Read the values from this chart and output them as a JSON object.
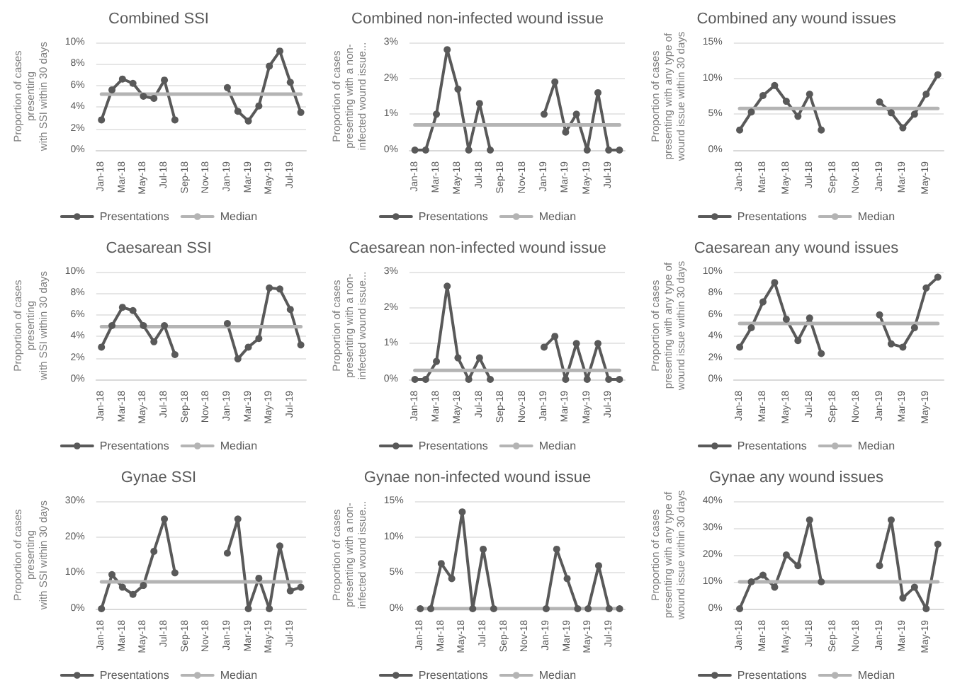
{
  "chart_data": [
    {
      "type": "line",
      "title": "Combined SSI",
      "ylabel": "Proportion of cases\npresenting\nwith SSI within 30 days",
      "categories": [
        "Jan-18",
        null,
        "Mar-18",
        null,
        "May-18",
        null,
        "Jul-18",
        null,
        "Sep-18",
        null,
        "Nov-18",
        null,
        "Jan-19",
        null,
        "Mar-19",
        null,
        "May-19",
        null,
        "Jul-19",
        null
      ],
      "series": [
        {
          "name": "Presentations",
          "color": "#595959",
          "marker": "circle",
          "values": [
            2.8,
            5.6,
            6.6,
            6.2,
            5.0,
            4.8,
            6.5,
            2.8,
            null,
            null,
            null,
            null,
            5.8,
            3.6,
            2.7,
            4.1,
            7.8,
            9.2,
            6.3,
            3.5
          ]
        },
        {
          "name": "Median",
          "color": "#b4b4b4",
          "marker": "none",
          "values": [
            5.2,
            5.2,
            5.2,
            5.2,
            5.2,
            5.2,
            5.2,
            5.2,
            5.2,
            5.2,
            5.2,
            5.2,
            5.2,
            5.2,
            5.2,
            5.2,
            5.2,
            5.2,
            5.2,
            5.2
          ]
        }
      ],
      "ylim": [
        0,
        10
      ],
      "yticks": [
        {
          "value": 0,
          "label": "0%"
        },
        {
          "value": 2,
          "label": "2%"
        },
        {
          "value": 4,
          "label": "4%"
        },
        {
          "value": 6,
          "label": "6%"
        },
        {
          "value": 8,
          "label": "8%"
        },
        {
          "value": 10,
          "label": "10%"
        }
      ],
      "grid": "y",
      "legend": "bottom"
    },
    {
      "type": "line",
      "title": "Combined non-infected wound issue",
      "ylabel": "Proportion of cases\npresenting with a non-\ninfected wound issue...",
      "categories": [
        "Jan-18",
        null,
        "Mar-18",
        null,
        "May-18",
        null,
        "Jul-18",
        null,
        "Sep-18",
        null,
        "Nov-18",
        null,
        "Jan-19",
        null,
        "Mar-19",
        null,
        "May-19",
        null,
        "Jul-19",
        null
      ],
      "series": [
        {
          "name": "Presentations",
          "color": "#595959",
          "marker": "circle",
          "values": [
            0,
            0,
            1.0,
            2.8,
            1.7,
            0,
            1.3,
            0,
            null,
            null,
            null,
            null,
            1.0,
            1.9,
            0.5,
            1.0,
            0,
            1.6,
            0,
            0
          ]
        },
        {
          "name": "Median",
          "color": "#b4b4b4",
          "marker": "none",
          "values": [
            0.7,
            0.7,
            0.7,
            0.7,
            0.7,
            0.7,
            0.7,
            0.7,
            0.7,
            0.7,
            0.7,
            0.7,
            0.7,
            0.7,
            0.7,
            0.7,
            0.7,
            0.7,
            0.7,
            0.7
          ]
        }
      ],
      "ylim": [
        0,
        3
      ],
      "yticks": [
        {
          "value": 0,
          "label": "0%"
        },
        {
          "value": 1,
          "label": "1%"
        },
        {
          "value": 2,
          "label": "2%"
        },
        {
          "value": 3,
          "label": "3%"
        }
      ],
      "grid": "y",
      "legend": "bottom"
    },
    {
      "type": "line",
      "title": "Combined any wound issues",
      "ylabel": "Proportion of cases\npresenting with any type of\nwound issue within 30 days",
      "categories": [
        "Jan-18",
        null,
        "Mar-18",
        null,
        "May-18",
        null,
        "Jul-18",
        null,
        "Sep-18",
        null,
        "Nov-18",
        null,
        "Jan-19",
        null,
        "Mar-19",
        null,
        "May-19",
        null
      ],
      "series": [
        {
          "name": "Presentations",
          "color": "#595959",
          "marker": "circle",
          "values": [
            2.8,
            5.3,
            7.6,
            9.0,
            6.8,
            4.7,
            7.8,
            2.8,
            null,
            null,
            null,
            null,
            6.7,
            5.2,
            3.1,
            5.0,
            7.8,
            10.5
          ]
        },
        {
          "name": "Median",
          "color": "#b4b4b4",
          "marker": "none",
          "values": [
            5.8,
            5.8,
            5.8,
            5.8,
            5.8,
            5.8,
            5.8,
            5.8,
            5.8,
            5.8,
            5.8,
            5.8,
            5.8,
            5.8,
            5.8,
            5.8,
            5.8,
            5.8
          ]
        }
      ],
      "ylim": [
        0,
        15
      ],
      "yticks": [
        {
          "value": 0,
          "label": "0%"
        },
        {
          "value": 5,
          "label": "5%"
        },
        {
          "value": 10,
          "label": "10%"
        },
        {
          "value": 15,
          "label": "15%"
        }
      ],
      "grid": "y",
      "legend": "bottom"
    },
    {
      "type": "line",
      "title": "Caesarean SSI",
      "ylabel": "Proportion of cases\npresenting\nwith SSI within 30 days",
      "categories": [
        "Jan-18",
        null,
        "Mar-18",
        null,
        "May-18",
        null,
        "Jul-18",
        null,
        "Sep-18",
        null,
        "Nov-18",
        null,
        "Jan-19",
        null,
        "Mar-19",
        null,
        "May-19",
        null,
        "Jul-19",
        null
      ],
      "series": [
        {
          "name": "Presentations",
          "color": "#595959",
          "marker": "circle",
          "values": [
            3.0,
            5.0,
            6.7,
            6.4,
            5.0,
            3.5,
            5.0,
            2.3,
            null,
            null,
            null,
            null,
            5.2,
            1.9,
            3.0,
            3.8,
            8.5,
            8.4,
            6.5,
            3.2
          ]
        },
        {
          "name": "Median",
          "color": "#b4b4b4",
          "marker": "none",
          "values": [
            4.9,
            4.9,
            4.9,
            4.9,
            4.9,
            4.9,
            4.9,
            4.9,
            4.9,
            4.9,
            4.9,
            4.9,
            4.9,
            4.9,
            4.9,
            4.9,
            4.9,
            4.9,
            4.9,
            4.9
          ]
        }
      ],
      "ylim": [
        0,
        10
      ],
      "yticks": [
        {
          "value": 0,
          "label": "0%"
        },
        {
          "value": 2,
          "label": "2%"
        },
        {
          "value": 4,
          "label": "4%"
        },
        {
          "value": 6,
          "label": "6%"
        },
        {
          "value": 8,
          "label": "8%"
        },
        {
          "value": 10,
          "label": "10%"
        }
      ],
      "grid": "y",
      "legend": "bottom"
    },
    {
      "type": "line",
      "title": "Caesarean non-infected wound issue",
      "ylabel": "Proportion of cases\npresenting with a non-\ninfected wound issue...",
      "categories": [
        "Jan-18",
        null,
        "Mar-18",
        null,
        "May-18",
        null,
        "Jul-18",
        null,
        "Sep-18",
        null,
        "Nov-18",
        null,
        "Jan-19",
        null,
        "Mar-19",
        null,
        "May-19",
        null,
        "Jul-19",
        null
      ],
      "series": [
        {
          "name": "Presentations",
          "color": "#595959",
          "marker": "circle",
          "values": [
            0,
            0,
            0.5,
            2.6,
            0.6,
            0,
            0.6,
            0,
            null,
            null,
            null,
            null,
            0.9,
            1.2,
            0,
            1.0,
            0,
            1.0,
            0,
            0
          ]
        },
        {
          "name": "Median",
          "color": "#b4b4b4",
          "marker": "none",
          "values": [
            0.25,
            0.25,
            0.25,
            0.25,
            0.25,
            0.25,
            0.25,
            0.25,
            0.25,
            0.25,
            0.25,
            0.25,
            0.25,
            0.25,
            0.25,
            0.25,
            0.25,
            0.25,
            0.25,
            0.25
          ]
        }
      ],
      "ylim": [
        0,
        3
      ],
      "yticks": [
        {
          "value": 0,
          "label": "0%"
        },
        {
          "value": 1,
          "label": "1%"
        },
        {
          "value": 2,
          "label": "2%"
        },
        {
          "value": 3,
          "label": "3%"
        }
      ],
      "grid": "y",
      "legend": "bottom"
    },
    {
      "type": "line",
      "title": "Caesarean any wound issues",
      "ylabel": "Proportion of cases\npresenting with any type of\nwound issue within 30 days",
      "categories": [
        "Jan-18",
        null,
        "Mar-18",
        null,
        "May-18",
        null,
        "Jul-18",
        null,
        "Sep-18",
        null,
        "Nov-18",
        null,
        "Jan-19",
        null,
        "Mar-19",
        null,
        "May-19",
        null
      ],
      "series": [
        {
          "name": "Presentations",
          "color": "#595959",
          "marker": "circle",
          "values": [
            3.0,
            4.8,
            7.2,
            9.0,
            5.6,
            3.6,
            5.7,
            2.4,
            null,
            null,
            null,
            null,
            6.0,
            3.3,
            3.0,
            4.8,
            8.5,
            9.5
          ]
        },
        {
          "name": "Median",
          "color": "#b4b4b4",
          "marker": "none",
          "values": [
            5.2,
            5.2,
            5.2,
            5.2,
            5.2,
            5.2,
            5.2,
            5.2,
            5.2,
            5.2,
            5.2,
            5.2,
            5.2,
            5.2,
            5.2,
            5.2,
            5.2,
            5.2
          ]
        }
      ],
      "ylim": [
        0,
        10
      ],
      "yticks": [
        {
          "value": 0,
          "label": "0%"
        },
        {
          "value": 2,
          "label": "2%"
        },
        {
          "value": 4,
          "label": "4%"
        },
        {
          "value": 6,
          "label": "6%"
        },
        {
          "value": 8,
          "label": "8%"
        },
        {
          "value": 10,
          "label": "10%"
        }
      ],
      "grid": "y",
      "legend": "bottom"
    },
    {
      "type": "line",
      "title": "Gynae SSI",
      "ylabel": "Proportion of cases\npresenting\nwith SSI within 30 days",
      "categories": [
        "Jan-18",
        null,
        "Mar-18",
        null,
        "May-18",
        null,
        "Jul-18",
        null,
        "Sep-18",
        null,
        "Nov-18",
        null,
        "Jan-19",
        null,
        "Mar-19",
        null,
        "May-19",
        null,
        "Jul-19",
        null
      ],
      "series": [
        {
          "name": "Presentations",
          "color": "#595959",
          "marker": "circle",
          "values": [
            0,
            9.5,
            6,
            4,
            6.5,
            16,
            25,
            10,
            null,
            null,
            null,
            null,
            15.5,
            25,
            0,
            8.5,
            0,
            17.5,
            5,
            6
          ]
        },
        {
          "name": "Median",
          "color": "#b4b4b4",
          "marker": "none",
          "values": [
            7.5,
            7.5,
            7.5,
            7.5,
            7.5,
            7.5,
            7.5,
            7.5,
            7.5,
            7.5,
            7.5,
            7.5,
            7.5,
            7.5,
            7.5,
            7.5,
            7.5,
            7.5,
            7.5,
            7.5
          ]
        }
      ],
      "ylim": [
        0,
        30
      ],
      "yticks": [
        {
          "value": 0,
          "label": "0%"
        },
        {
          "value": 10,
          "label": "10%"
        },
        {
          "value": 20,
          "label": "20%"
        },
        {
          "value": 30,
          "label": "30%"
        }
      ],
      "grid": "y",
      "legend": "bottom"
    },
    {
      "type": "line",
      "title": "Gynae non-infected wound issue",
      "ylabel": "Proportion of cases\npresenting with a non-\ninfected wound issue...",
      "categories": [
        "Jan-18",
        null,
        "Mar-18",
        null,
        "May-18",
        null,
        "Jul-18",
        null,
        "Sep-18",
        null,
        "Nov-18",
        null,
        "Jan-19",
        null,
        "Mar-19",
        null,
        "May-19",
        null,
        "Jul-19",
        null
      ],
      "series": [
        {
          "name": "Presentations",
          "color": "#595959",
          "marker": "circle",
          "values": [
            0,
            0,
            6.3,
            4.2,
            13.5,
            0,
            8.3,
            0,
            null,
            null,
            null,
            null,
            0,
            8.3,
            4.2,
            0,
            0,
            6,
            0,
            0
          ]
        },
        {
          "name": "Median",
          "color": "#b4b4b4",
          "marker": "none",
          "values": [
            0,
            0,
            0,
            0,
            0,
            0,
            0,
            0,
            0,
            0,
            0,
            0,
            0,
            0,
            0,
            0,
            0,
            0,
            0,
            0
          ]
        }
      ],
      "ylim": [
        0,
        15
      ],
      "yticks": [
        {
          "value": 0,
          "label": "0%"
        },
        {
          "value": 5,
          "label": "5%"
        },
        {
          "value": 10,
          "label": "10%"
        },
        {
          "value": 15,
          "label": "15%"
        }
      ],
      "grid": "y",
      "legend": "bottom"
    },
    {
      "type": "line",
      "title": "Gynae any wound issues",
      "ylabel": "Proportion of cases\npresenting with any type of\nwound issue within 30 days",
      "categories": [
        "Jan-18",
        null,
        "Mar-18",
        null,
        "May-18",
        null,
        "Jul-18",
        null,
        "Sep-18",
        null,
        "Nov-18",
        null,
        "Jan-19",
        null,
        "Mar-19",
        null,
        "May-19",
        null
      ],
      "series": [
        {
          "name": "Presentations",
          "color": "#595959",
          "marker": "circle",
          "values": [
            0,
            10,
            12.5,
            8,
            20,
            16,
            33,
            10,
            null,
            null,
            null,
            null,
            16,
            33,
            4,
            8,
            0,
            24
          ]
        },
        {
          "name": "Median",
          "color": "#b4b4b4",
          "marker": "none",
          "values": [
            10,
            10,
            10,
            10,
            10,
            10,
            10,
            10,
            10,
            10,
            10,
            10,
            10,
            10,
            10,
            10,
            10,
            10
          ]
        }
      ],
      "ylim": [
        0,
        40
      ],
      "yticks": [
        {
          "value": 0,
          "label": "0%"
        },
        {
          "value": 10,
          "label": "10%"
        },
        {
          "value": 20,
          "label": "20%"
        },
        {
          "value": 30,
          "label": "30%"
        },
        {
          "value": 40,
          "label": "40%"
        }
      ],
      "grid": "y",
      "legend": "bottom"
    }
  ]
}
